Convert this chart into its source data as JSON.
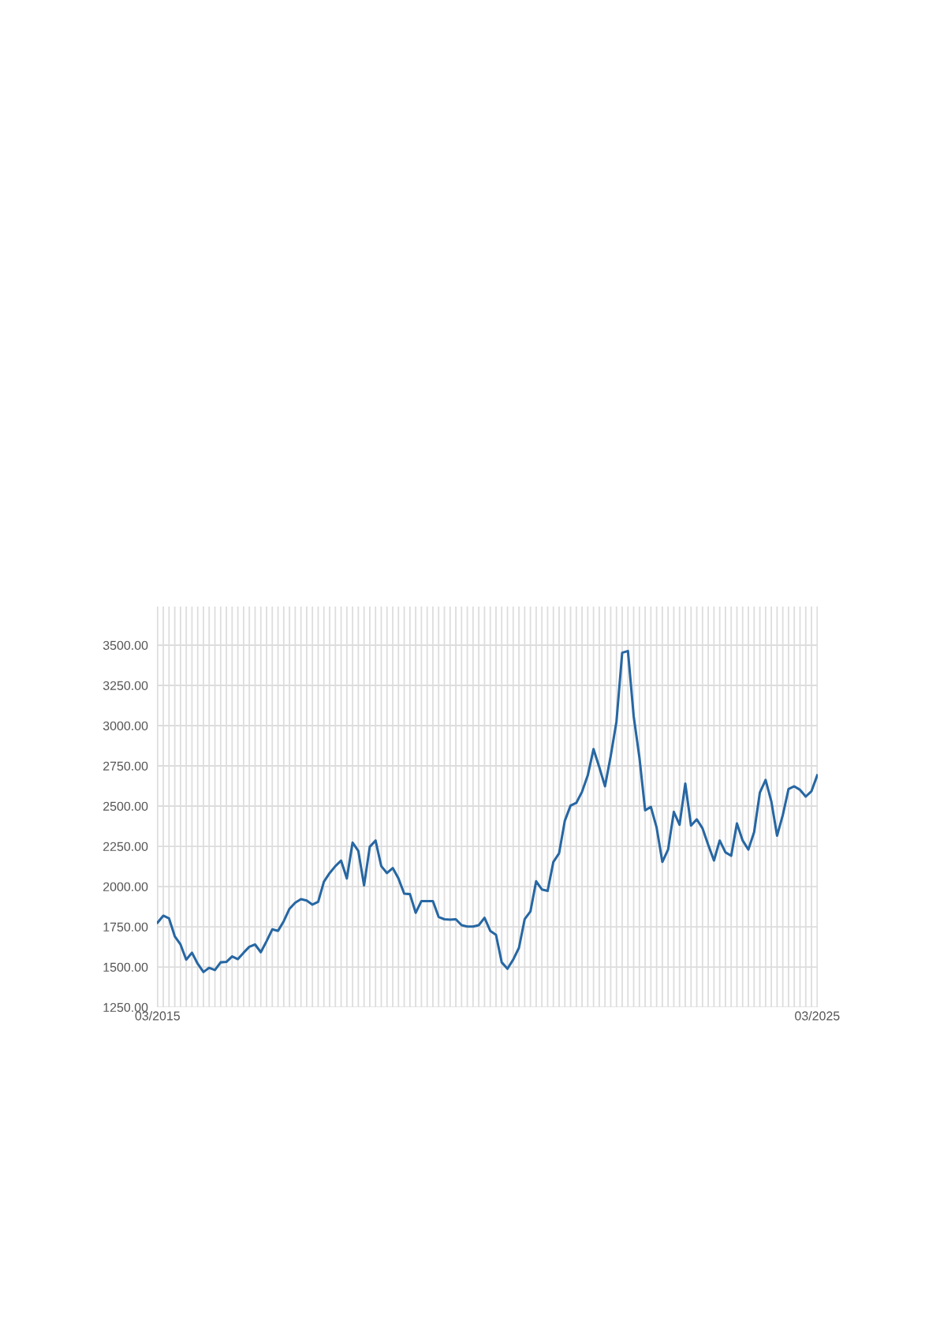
{
  "chart_data": {
    "type": "line",
    "categories": [
      "03/2015",
      null,
      null,
      null,
      null,
      null,
      null,
      null,
      null,
      null,
      null,
      null,
      null,
      null,
      null,
      null,
      null,
      null,
      null,
      null,
      null,
      null,
      null,
      null,
      null,
      null,
      null,
      null,
      null,
      null,
      null,
      null,
      null,
      null,
      null,
      null,
      null,
      null,
      null,
      null,
      null,
      null,
      null,
      null,
      null,
      null,
      null,
      null,
      null,
      null,
      null,
      null,
      null,
      null,
      null,
      null,
      null,
      null,
      null,
      null,
      null,
      null,
      null,
      null,
      null,
      null,
      null,
      null,
      null,
      null,
      null,
      null,
      null,
      null,
      null,
      null,
      null,
      null,
      null,
      null,
      null,
      null,
      null,
      null,
      null,
      null,
      null,
      null,
      null,
      null,
      null,
      null,
      null,
      null,
      null,
      null,
      null,
      null,
      null,
      null,
      null,
      null,
      null,
      null,
      null,
      null,
      null,
      null,
      null,
      null,
      null,
      null,
      null,
      null,
      null,
      "03/2025"
    ],
    "series": [
      {
        "color": "#2767a3",
        "values": [
          1776,
          1819,
          1802,
          1691,
          1640,
          1546,
          1589,
          1520,
          1469,
          1495,
          1481,
          1529,
          1532,
          1566,
          1549,
          1589,
          1626,
          1640,
          1592,
          1660,
          1734,
          1725,
          1785,
          1862,
          1900,
          1922,
          1913,
          1888,
          1905,
          2030,
          2084,
          2127,
          2161,
          2050,
          2273,
          2221,
          2007,
          2247,
          2286,
          2127,
          2084,
          2115,
          2050,
          1956,
          1953,
          1837,
          1910,
          1910,
          1910,
          1811,
          1797,
          1794,
          1797,
          1760,
          1751,
          1751,
          1760,
          1806,
          1725,
          1700,
          1529,
          1489,
          1546,
          1619,
          1797,
          1845,
          2033,
          1982,
          1973,
          2153,
          2207,
          2409,
          2503,
          2520,
          2589,
          2691,
          2854,
          2743,
          2623,
          2811,
          3025,
          3453,
          3464,
          3059,
          2803,
          2474,
          2495,
          2367,
          2153,
          2230,
          2464,
          2384,
          2640,
          2379,
          2418,
          2362,
          2259,
          2162,
          2286,
          2213,
          2191,
          2392,
          2286,
          2230,
          2338,
          2584,
          2663,
          2529,
          2316,
          2444,
          2606,
          2623,
          2601,
          2559,
          2593,
          2691
        ]
      }
    ],
    "ylim": [
      1250,
      3740
    ],
    "yticks": [
      {
        "value": 1250,
        "label": "1250.00"
      },
      {
        "value": 1500,
        "label": "1500.00"
      },
      {
        "value": 1750,
        "label": "1750.00"
      },
      {
        "value": 2000,
        "label": "2000.00"
      },
      {
        "value": 2250,
        "label": "2250.00"
      },
      {
        "value": 2500,
        "label": "2500.00"
      },
      {
        "value": 2750,
        "label": "2750.00"
      },
      {
        "value": 3000,
        "label": "3000.00"
      },
      {
        "value": 3250,
        "label": "3250.00"
      },
      {
        "value": 3500,
        "label": "3500.00"
      }
    ],
    "grid": true,
    "marker": "none",
    "line_style": "solid"
  }
}
